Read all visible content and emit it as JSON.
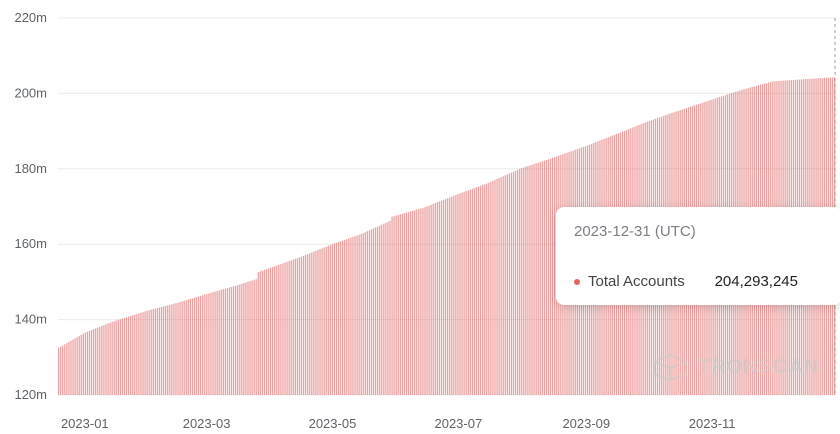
{
  "chart_data": {
    "type": "bar",
    "x_start": "2022-12-19",
    "x_end": "2023-12-31",
    "x_ticks": [
      "2023-01",
      "2023-03",
      "2023-05",
      "2023-07",
      "2023-09",
      "2023-11"
    ],
    "y_ticks": [
      "120m",
      "140m",
      "160m",
      "180m",
      "200m",
      "220m"
    ],
    "ylim": [
      120000000,
      220000000
    ],
    "series": [
      {
        "name": "Total Accounts",
        "color": "#e06666",
        "points": [
          [
            "2022-12-19",
            132500000
          ],
          [
            "2023-01-01",
            136600000
          ],
          [
            "2023-01-15",
            139600000
          ],
          [
            "2023-02-01",
            142500000
          ],
          [
            "2023-02-15",
            144500000
          ],
          [
            "2023-03-01",
            146800000
          ],
          [
            "2023-03-15",
            149000000
          ],
          [
            "2023-03-25",
            150700000
          ],
          [
            "2023-03-26",
            152600000
          ],
          [
            "2023-04-15",
            156500000
          ],
          [
            "2023-05-01",
            160000000
          ],
          [
            "2023-05-15",
            162700000
          ],
          [
            "2023-05-29",
            166200000
          ],
          [
            "2023-05-30",
            167300000
          ],
          [
            "2023-06-15",
            169800000
          ],
          [
            "2023-07-01",
            173300000
          ],
          [
            "2023-07-15",
            176100000
          ],
          [
            "2023-08-01",
            180200000
          ],
          [
            "2023-08-15",
            182700000
          ],
          [
            "2023-09-01",
            186000000
          ],
          [
            "2023-09-15",
            189000000
          ],
          [
            "2023-10-01",
            192500000
          ],
          [
            "2023-10-15",
            195200000
          ],
          [
            "2023-11-01",
            198300000
          ],
          [
            "2023-11-15",
            200800000
          ],
          [
            "2023-12-01",
            203200000
          ],
          [
            "2023-12-31",
            204293245
          ]
        ]
      }
    ]
  },
  "tooltip": {
    "date": "2023-12-31 (UTC)",
    "label": "Total Accounts",
    "value": "204,293,245"
  },
  "watermark": {
    "text": "TRONSCAN"
  }
}
